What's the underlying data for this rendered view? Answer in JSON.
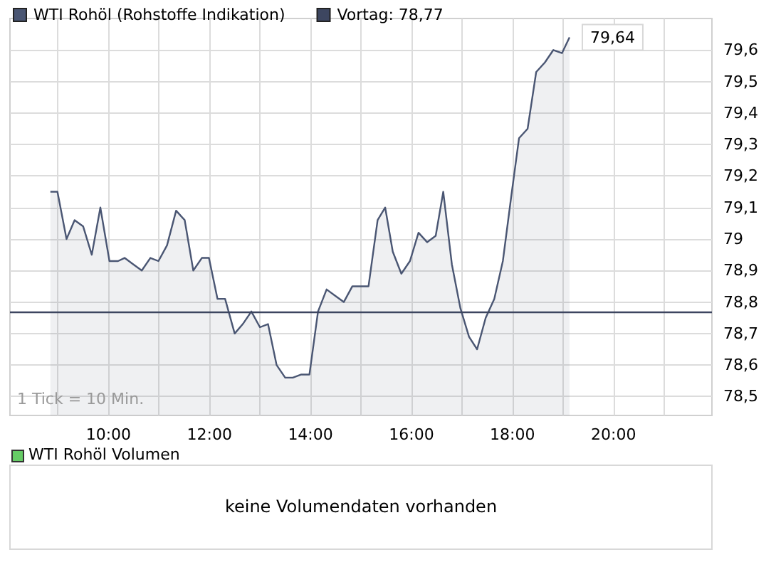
{
  "chart_data": {
    "type": "area",
    "x": [
      8.85,
      8.99,
      9.17,
      9.33,
      9.5,
      9.67,
      9.84,
      10.02,
      10.19,
      10.32,
      10.49,
      10.66,
      10.83,
      10.99,
      11.16,
      11.34,
      11.51,
      11.68,
      11.85,
      11.99,
      12.16,
      12.31,
      12.5,
      12.66,
      12.83,
      13.0,
      13.16,
      13.33,
      13.5,
      13.65,
      13.82,
      13.98,
      14.15,
      14.32,
      14.49,
      14.66,
      14.83,
      15.0,
      15.15,
      15.33,
      15.48,
      15.63,
      15.8,
      15.97,
      16.14,
      16.31,
      16.48,
      16.63,
      16.8,
      16.97,
      17.14,
      17.3,
      17.47,
      17.64,
      17.81,
      17.98,
      18.13,
      18.3,
      18.47,
      18.64,
      18.81,
      18.98,
      19.13
    ],
    "series": [
      {
        "name": "WTI Rohöl (Rohstoffe Indikation)",
        "color": "#4a5673",
        "values": [
          79.15,
          79.15,
          79.0,
          79.06,
          79.04,
          78.95,
          79.1,
          78.93,
          78.93,
          78.94,
          78.92,
          78.9,
          78.94,
          78.93,
          78.98,
          79.09,
          79.06,
          78.9,
          78.94,
          78.94,
          78.81,
          78.81,
          78.7,
          78.73,
          78.77,
          78.72,
          78.73,
          78.6,
          78.56,
          78.56,
          78.57,
          78.57,
          78.77,
          78.84,
          78.82,
          78.8,
          78.85,
          78.85,
          78.85,
          79.06,
          79.1,
          78.96,
          78.89,
          78.93,
          79.02,
          78.99,
          79.01,
          79.15,
          78.92,
          78.78,
          78.69,
          78.65,
          78.75,
          78.81,
          78.93,
          79.14,
          79.32,
          79.35,
          79.53,
          79.56,
          79.6,
          79.59,
          79.64
        ]
      }
    ],
    "xlim": [
      8.05,
      21.95
    ],
    "xticks": [
      {
        "value": 9,
        "label": null
      },
      {
        "value": 10,
        "label": "10:00"
      },
      {
        "value": 11,
        "label": null
      },
      {
        "value": 12,
        "label": "12:00"
      },
      {
        "value": 13,
        "label": null
      },
      {
        "value": 14,
        "label": "14:00"
      },
      {
        "value": 15,
        "label": null
      },
      {
        "value": 16,
        "label": "16:00"
      },
      {
        "value": 17,
        "label": null
      },
      {
        "value": 18,
        "label": "18:00"
      },
      {
        "value": 19,
        "label": null
      },
      {
        "value": 20,
        "label": "20:00"
      },
      {
        "value": 21,
        "label": null
      }
    ],
    "ylim": [
      78.44,
      79.7
    ],
    "yticks": [
      {
        "value": 78.5,
        "label": "78,5"
      },
      {
        "value": 78.6,
        "label": "78,6"
      },
      {
        "value": 78.7,
        "label": "78,7"
      },
      {
        "value": 78.8,
        "label": "78,8"
      },
      {
        "value": 78.9,
        "label": "78,9"
      },
      {
        "value": 79,
        "label": "79"
      },
      {
        "value": 79.1,
        "label": "79,1"
      },
      {
        "value": 79.2,
        "label": "79,2"
      },
      {
        "value": 79.3,
        "label": "79,3"
      },
      {
        "value": 79.4,
        "label": "79,4"
      },
      {
        "value": 79.5,
        "label": "79,5"
      },
      {
        "value": 79.6,
        "label": "79,6"
      }
    ],
    "ref_lines": [
      {
        "axis": "y",
        "value": 78.77,
        "label": "Vortag: 78,77",
        "color": "#3d4660"
      }
    ],
    "annotations": [
      "1 Tick = 10 Min.",
      "WTI Rohöl Volumen",
      "keine Volumendaten vorhanden",
      {
        "text": "79,64",
        "x": 19.13,
        "y": 79.64
      }
    ],
    "grid": true,
    "legend": "top left",
    "marker": "none"
  }
}
